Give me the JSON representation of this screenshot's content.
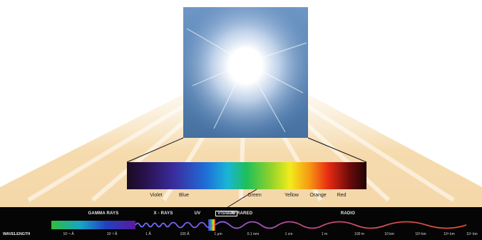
{
  "colors": {
    "background": "#ffffff",
    "beam": "#f5d9a8",
    "bar": "#050505",
    "sky": "#4f7fb5"
  },
  "spectrum_colors": [
    "Violet",
    "Blue",
    "Green",
    "Yellow",
    "Orange",
    "Red"
  ],
  "bands": [
    "GAMMA RAYS",
    "X - RAYS",
    "UV",
    "VISIBLE",
    "INFRARED",
    "RADIO"
  ],
  "wavelength_label": "WAVELENGTH",
  "wavelength_ticks": [
    "10⁻⁴ Å",
    "10⁻² Å",
    "1 Å",
    "100 Å",
    "1 μm",
    "0.1 mm",
    "1 cm",
    "1 m",
    "100 m",
    "10 km",
    "10³ km",
    "10⁵ km",
    "10⁷ km"
  ]
}
